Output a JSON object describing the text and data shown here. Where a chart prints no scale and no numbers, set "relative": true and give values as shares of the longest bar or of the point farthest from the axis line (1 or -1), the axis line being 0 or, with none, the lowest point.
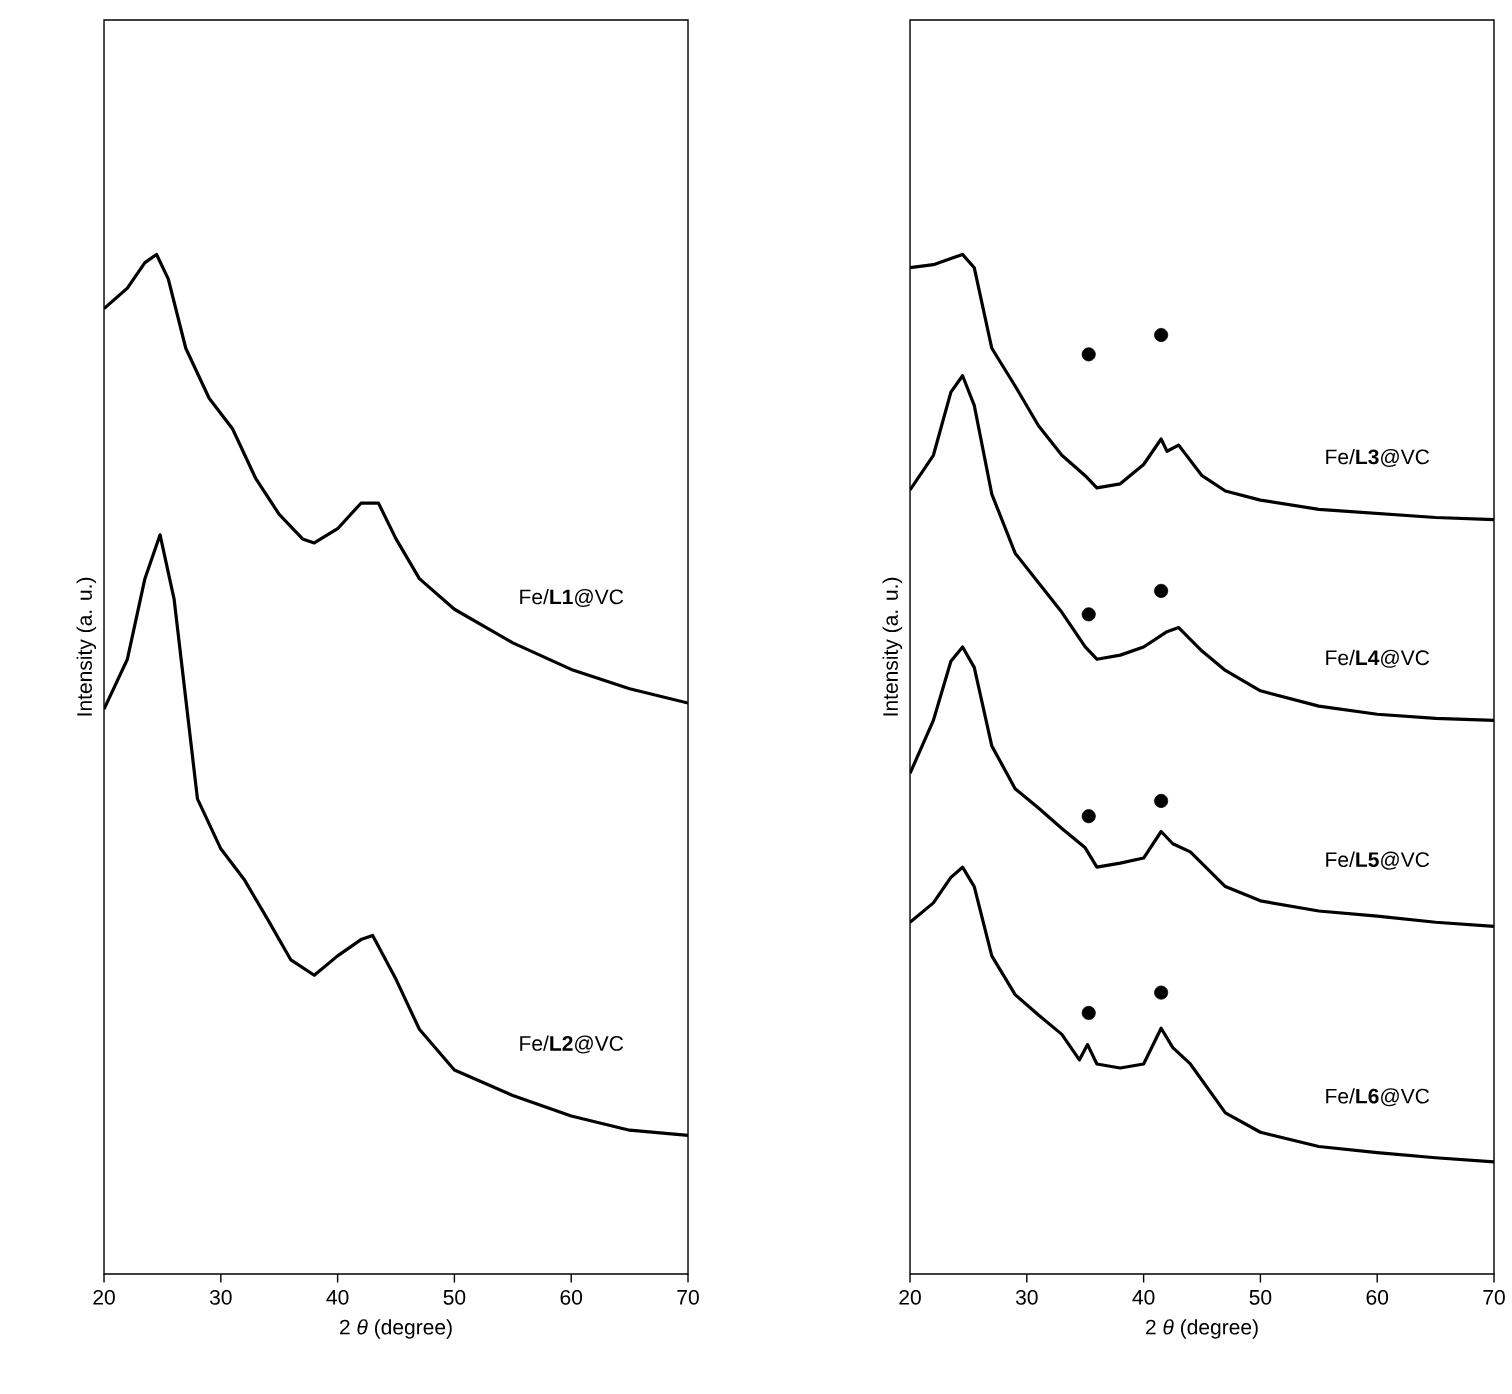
{
  "chart_data": [
    {
      "type": "line",
      "relative": true,
      "xlabel": "2 *θ* (degree)",
      "ylabel": "Intensity (a. u.)",
      "xlim": [
        20,
        70
      ],
      "xticks": [
        20,
        30,
        40,
        50,
        60,
        70
      ],
      "series": [
        {
          "name": "Fe/**L1**@VC",
          "color": "#000000",
          "x": [
            20,
            22,
            23.5,
            24.5,
            25.5,
            27,
            29,
            31,
            33,
            35,
            37,
            38,
            40,
            42,
            43.5,
            45,
            47,
            50,
            55,
            60,
            65,
            70
          ],
          "values": [
            0.947,
            0.967,
            0.992,
            1.0,
            0.976,
            0.908,
            0.859,
            0.829,
            0.78,
            0.745,
            0.721,
            0.717,
            0.731,
            0.756,
            0.756,
            0.721,
            0.682,
            0.652,
            0.619,
            0.593,
            0.574,
            0.56
          ]
        },
        {
          "name": "Fe/**L2**@VC",
          "color": "#000000",
          "x": [
            20,
            22,
            23.5,
            24.8,
            26,
            27,
            28,
            30,
            32,
            34,
            36,
            38,
            40,
            42,
            43,
            45,
            47,
            50,
            55,
            60,
            65,
            70
          ],
          "values": [
            0.554,
            0.603,
            0.682,
            0.725,
            0.662,
            0.564,
            0.466,
            0.417,
            0.387,
            0.348,
            0.308,
            0.293,
            0.312,
            0.328,
            0.332,
            0.289,
            0.24,
            0.2,
            0.175,
            0.155,
            0.141,
            0.136
          ]
        }
      ]
    },
    {
      "type": "line",
      "relative": true,
      "xlabel": "2 *θ* (degree)",
      "ylabel": "Intensity (a. u.)",
      "xlim": [
        20,
        70
      ],
      "xticks": [
        20,
        30,
        40,
        50,
        60,
        70
      ],
      "series": [
        {
          "name": "Fe/**L3**@VC",
          "color": "#000000",
          "x": [
            20,
            22,
            23.5,
            24.5,
            25.5,
            27,
            29,
            31,
            33,
            35,
            36,
            38,
            40,
            41.5,
            42,
            43,
            45,
            47,
            50,
            55,
            60,
            65,
            70
          ],
          "values": [
            0.987,
            0.99,
            0.996,
            1.0,
            0.987,
            0.908,
            0.871,
            0.832,
            0.803,
            0.783,
            0.771,
            0.775,
            0.794,
            0.819,
            0.807,
            0.813,
            0.783,
            0.768,
            0.759,
            0.75,
            0.746,
            0.742,
            0.74
          ]
        },
        {
          "name": "Fe/**L4**@VC",
          "color": "#000000",
          "x": [
            20,
            22,
            23.5,
            24.5,
            25.5,
            27,
            29,
            31,
            33,
            35,
            36,
            38,
            40,
            42,
            43,
            45,
            47,
            50,
            55,
            60,
            65,
            70
          ],
          "values": [
            0.769,
            0.803,
            0.865,
            0.881,
            0.852,
            0.765,
            0.707,
            0.678,
            0.649,
            0.615,
            0.603,
            0.607,
            0.615,
            0.63,
            0.634,
            0.611,
            0.592,
            0.572,
            0.557,
            0.549,
            0.545,
            0.543
          ]
        },
        {
          "name": "Fe/**L5**@VC",
          "color": "#000000",
          "x": [
            20,
            22,
            23.5,
            24.5,
            25.5,
            27,
            29,
            31,
            33,
            35,
            36,
            38,
            40,
            41.5,
            42.5,
            44,
            47,
            50,
            55,
            60,
            65,
            70
          ],
          "values": [
            0.491,
            0.543,
            0.601,
            0.615,
            0.595,
            0.518,
            0.476,
            0.457,
            0.437,
            0.418,
            0.399,
            0.403,
            0.408,
            0.434,
            0.422,
            0.414,
            0.38,
            0.366,
            0.356,
            0.351,
            0.345,
            0.341
          ]
        },
        {
          "name": "Fe/**L6**@VC",
          "color": "#000000",
          "x": [
            20,
            22,
            23.5,
            24.5,
            25.5,
            27,
            29,
            31,
            33,
            34.5,
            35.2,
            36,
            38,
            40,
            41.5,
            42.5,
            44,
            47,
            50,
            55,
            60,
            65,
            70
          ],
          "values": [
            0.345,
            0.364,
            0.389,
            0.399,
            0.38,
            0.312,
            0.274,
            0.254,
            0.235,
            0.21,
            0.225,
            0.206,
            0.202,
            0.206,
            0.241,
            0.222,
            0.206,
            0.158,
            0.139,
            0.125,
            0.119,
            0.114,
            0.11
          ]
        },
        {
          "type": "scatter",
          "marker": "circle",
          "color": "#000000",
          "x": [
            35.3,
            41.5,
            35.3,
            41.5,
            35.3,
            41.5,
            35.3,
            41.5
          ],
          "values": [
            0.902,
            0.921,
            0.647,
            0.67,
            0.449,
            0.464,
            0.256,
            0.276
          ]
        }
      ]
    }
  ]
}
